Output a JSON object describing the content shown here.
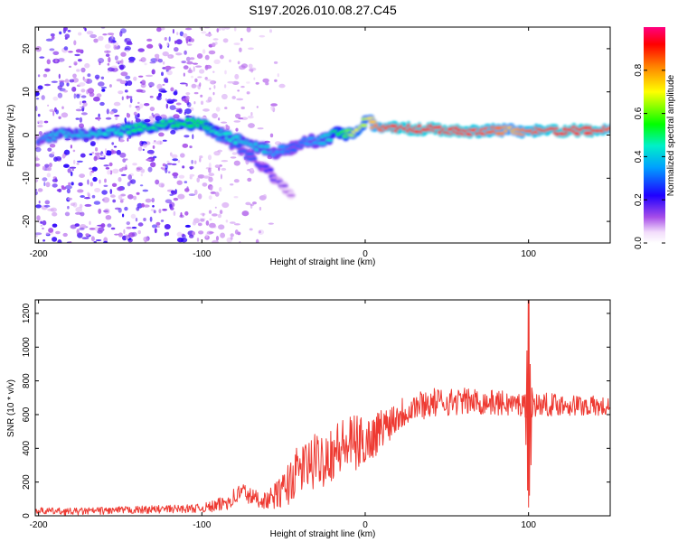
{
  "title": "S197.2026.010.08.27.C45",
  "chart_data": [
    {
      "type": "heatmap",
      "name": "spectrogram",
      "xlabel": "Height of straight line (km)",
      "ylabel": "Frequency (Hz)",
      "xlim": [
        -202,
        150
      ],
      "ylim": [
        -25,
        25
      ],
      "xticks": [
        -200,
        -100,
        0,
        100
      ],
      "yticks": [
        -20,
        -10,
        0,
        10,
        20
      ],
      "main_ridge": {
        "x": [
          -200,
          -190,
          -180,
          -170,
          -160,
          -150,
          -140,
          -130,
          -120,
          -110,
          -100,
          -95,
          -90,
          -85,
          -80,
          -75,
          -70,
          -65,
          -60,
          -55,
          -50,
          -45,
          -40,
          -35,
          -30,
          -25,
          -20,
          -15,
          -10,
          -5,
          0,
          3,
          6,
          10,
          20,
          40,
          60,
          80,
          90,
          95,
          100,
          120,
          140,
          150
        ],
        "y": [
          -1,
          0,
          0.5,
          0,
          0.5,
          1,
          1.5,
          2,
          2.5,
          3,
          2.5,
          2,
          1,
          0,
          -1,
          -1.5,
          -2.5,
          -3,
          -3.5,
          -4,
          -3.5,
          -3,
          -2,
          -1.5,
          -1.5,
          -1,
          0,
          0.5,
          0.5,
          1,
          3,
          3.5,
          2,
          1.5,
          1.5,
          1.5,
          1,
          1,
          1,
          1,
          1,
          1,
          1,
          1
        ],
        "amplitude": [
          0.3,
          0.4,
          0.4,
          0.4,
          0.45,
          0.45,
          0.5,
          0.5,
          0.5,
          0.55,
          0.55,
          0.5,
          0.45,
          0.45,
          0.45,
          0.4,
          0.4,
          0.4,
          0.4,
          0.35,
          0.35,
          0.3,
          0.3,
          0.35,
          0.35,
          0.4,
          0.45,
          0.55,
          0.6,
          0.7,
          0.65,
          0.7,
          0.8,
          0.85,
          0.9,
          0.9,
          0.9,
          0.85,
          0.75,
          0.8,
          0.85,
          0.9,
          0.9,
          0.85
        ]
      },
      "secondary_ridge": {
        "x": [
          -100,
          -90,
          -80,
          -70,
          -60,
          -55,
          -50,
          -45
        ],
        "y": [
          2,
          0,
          -2.5,
          -5,
          -8,
          -10,
          -12,
          -14
        ],
        "amplitude": [
          0.4,
          0.35,
          0.3,
          0.3,
          0.25,
          0.2,
          0.15,
          0.1
        ]
      },
      "noise_region": {
        "x_range": [
          -202,
          -105
        ],
        "y_range": [
          -25,
          25
        ],
        "amplitude": 0.12
      },
      "colorbar": {
        "label": "Normalized spectral amplitude",
        "range": [
          0,
          1
        ],
        "ticks": [
          "0.0",
          "0.2",
          "0.4",
          "0.6",
          "0.8"
        ]
      }
    },
    {
      "type": "line",
      "name": "snr",
      "xlabel": "Height of straight line (km)",
      "ylabel": "SNR (10 * v/v)",
      "xlim": [
        -202,
        150
      ],
      "ylim": [
        0,
        1280
      ],
      "xticks": [
        -200,
        -100,
        0,
        100
      ],
      "yticks": [
        0,
        200,
        400,
        600,
        800,
        1000,
        1200
      ],
      "color": "#ee3a32",
      "trend": {
        "x": [
          -202,
          -180,
          -160,
          -140,
          -120,
          -100,
          -90,
          -80,
          -75,
          -70,
          -60,
          -50,
          -45,
          -40,
          -35,
          -30,
          -25,
          -20,
          -15,
          -10,
          -5,
          0,
          5,
          10,
          20,
          30,
          40,
          60,
          80,
          95,
          100,
          105,
          120,
          140,
          150
        ],
        "y": [
          30,
          25,
          30,
          35,
          40,
          45,
          60,
          110,
          150,
          110,
          90,
          150,
          220,
          280,
          300,
          320,
          350,
          380,
          400,
          420,
          430,
          440,
          470,
          520,
          600,
          650,
          670,
          680,
          670,
          660,
          650,
          660,
          660,
          650,
          640
        ]
      },
      "noise_amplitude": {
        "x": [
          -202,
          -100,
          -80,
          -60,
          -45,
          -30,
          -10,
          10,
          30,
          60,
          150
        ],
        "y": [
          20,
          25,
          60,
          50,
          140,
          170,
          180,
          120,
          90,
          80,
          60
        ]
      },
      "spike": {
        "x": 100,
        "max": 1280,
        "min": 50
      }
    }
  ]
}
